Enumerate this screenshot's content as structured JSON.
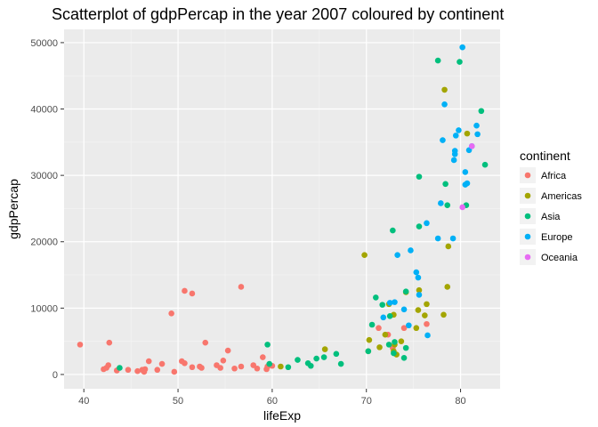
{
  "chart_data": {
    "type": "scatter",
    "title": "Scatterplot of gdpPercap in the year 2007 coloured by continent",
    "xlabel": "lifeExp",
    "ylabel": "gdpPercap",
    "xlim": [
      37.9,
      84.2
    ],
    "ylim": [
      -2150,
      52000
    ],
    "x_ticks": [
      40,
      50,
      60,
      70,
      80
    ],
    "y_ticks": [
      0,
      10000,
      20000,
      30000,
      40000,
      50000
    ],
    "grid": true,
    "legend": {
      "title": "continent",
      "placement": "right"
    },
    "series": [
      {
        "name": "Africa",
        "color": "#F8766D",
        "points": [
          [
            39.6,
            4500
          ],
          [
            42.1,
            800
          ],
          [
            42.4,
            1000
          ],
          [
            42.6,
            1400
          ],
          [
            42.7,
            4800
          ],
          [
            43.5,
            600
          ],
          [
            44.7,
            700
          ],
          [
            45.7,
            500
          ],
          [
            46.2,
            700
          ],
          [
            46.4,
            400
          ],
          [
            46.5,
            800
          ],
          [
            46.9,
            2000
          ],
          [
            47.8,
            700
          ],
          [
            48.3,
            1600
          ],
          [
            49.3,
            9200
          ],
          [
            49.6,
            400
          ],
          [
            50.4,
            2000
          ],
          [
            50.7,
            1700
          ],
          [
            50.7,
            12600
          ],
          [
            51.5,
            12200
          ],
          [
            51.5,
            1100
          ],
          [
            52.3,
            1200
          ],
          [
            52.9,
            4800
          ],
          [
            54.1,
            1400
          ],
          [
            54.5,
            1000
          ],
          [
            54.8,
            2100
          ],
          [
            55.3,
            3600
          ],
          [
            56.0,
            900
          ],
          [
            56.7,
            13200
          ],
          [
            56.7,
            1200
          ],
          [
            58.0,
            1400
          ],
          [
            58.4,
            900
          ],
          [
            59.4,
            800
          ],
          [
            59.5,
            1200
          ],
          [
            60.0,
            1300
          ],
          [
            71.3,
            7000
          ],
          [
            72.3,
            6000
          ],
          [
            72.8,
            4000
          ],
          [
            74.0,
            7000
          ],
          [
            76.4,
            7600
          ],
          [
            59.0,
            2600
          ],
          [
            52.5,
            1000
          ]
        ]
      },
      {
        "name": "Americas",
        "color": "#A3A500",
        "points": [
          [
            60.9,
            1200
          ],
          [
            65.6,
            3800
          ],
          [
            69.8,
            18000
          ],
          [
            70.3,
            5200
          ],
          [
            71.4,
            4100
          ],
          [
            72.0,
            6000
          ],
          [
            72.4,
            10600
          ],
          [
            72.9,
            9000
          ],
          [
            72.9,
            3500
          ],
          [
            73.0,
            4500
          ],
          [
            73.7,
            5000
          ],
          [
            74.2,
            12400
          ],
          [
            75.3,
            7000
          ],
          [
            75.5,
            9700
          ],
          [
            75.6,
            12700
          ],
          [
            76.2,
            8900
          ],
          [
            76.4,
            10600
          ],
          [
            78.2,
            9000
          ],
          [
            78.3,
            42900
          ],
          [
            78.6,
            13200
          ],
          [
            78.7,
            19300
          ],
          [
            80.7,
            36300
          ],
          [
            70.2,
            3500
          ],
          [
            73.2,
            3000
          ]
        ]
      },
      {
        "name": "Asia",
        "color": "#00BF7D",
        "points": [
          [
            43.8,
            1000
          ],
          [
            59.5,
            4500
          ],
          [
            59.7,
            1600
          ],
          [
            61.7,
            1100
          ],
          [
            62.7,
            2200
          ],
          [
            63.8,
            1700
          ],
          [
            64.1,
            1300
          ],
          [
            64.7,
            2400
          ],
          [
            65.5,
            2600
          ],
          [
            66.8,
            3100
          ],
          [
            67.3,
            1600
          ],
          [
            70.2,
            3500
          ],
          [
            70.6,
            7500
          ],
          [
            71.0,
            11600
          ],
          [
            71.7,
            10500
          ],
          [
            72.4,
            4500
          ],
          [
            72.8,
            21700
          ],
          [
            72.9,
            3200
          ],
          [
            73.0,
            4900
          ],
          [
            74.0,
            2500
          ],
          [
            74.2,
            12500
          ],
          [
            74.2,
            4000
          ],
          [
            75.6,
            29800
          ],
          [
            75.6,
            22300
          ],
          [
            77.6,
            47300
          ],
          [
            78.4,
            28700
          ],
          [
            78.6,
            25500
          ],
          [
            79.9,
            47100
          ],
          [
            80.6,
            25500
          ],
          [
            82.2,
            39700
          ],
          [
            82.6,
            31600
          ],
          [
            72.5,
            8800
          ]
        ]
      },
      {
        "name": "Europe",
        "color": "#00B0F6",
        "points": [
          [
            71.8,
            8600
          ],
          [
            72.5,
            10800
          ],
          [
            73.0,
            10900
          ],
          [
            73.3,
            18000
          ],
          [
            74.0,
            9800
          ],
          [
            74.5,
            7400
          ],
          [
            74.7,
            18700
          ],
          [
            75.3,
            15400
          ],
          [
            75.5,
            14600
          ],
          [
            75.6,
            12000
          ],
          [
            76.4,
            22800
          ],
          [
            76.5,
            5900
          ],
          [
            77.6,
            20500
          ],
          [
            77.9,
            25800
          ],
          [
            78.1,
            35300
          ],
          [
            78.3,
            40700
          ],
          [
            79.3,
            32300
          ],
          [
            79.4,
            33200
          ],
          [
            79.4,
            33700
          ],
          [
            79.5,
            36000
          ],
          [
            79.8,
            36800
          ],
          [
            80.2,
            49300
          ],
          [
            80.5,
            30500
          ],
          [
            80.5,
            28600
          ],
          [
            80.7,
            28800
          ],
          [
            80.9,
            33800
          ],
          [
            81.2,
            34400
          ],
          [
            81.7,
            37500
          ],
          [
            81.8,
            36200
          ],
          [
            79.2,
            20500
          ]
        ]
      },
      {
        "name": "Oceania",
        "color": "#E76BF3",
        "points": [
          [
            80.2,
            25200
          ],
          [
            81.2,
            34400
          ]
        ]
      }
    ]
  }
}
